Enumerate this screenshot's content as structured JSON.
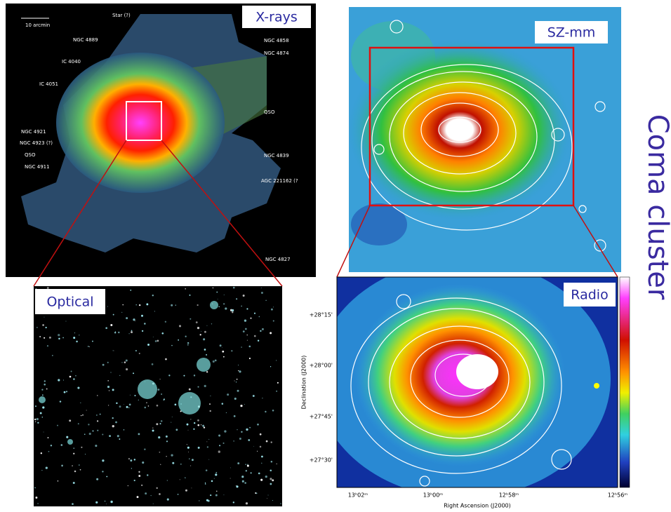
{
  "xray": {
    "label": "X-rays",
    "scale": "10 arcmin",
    "annotations": [
      "Star (?)",
      "NGC 4889",
      "NGC 4858",
      "NGC 4874",
      "IC 4040",
      "IC 4051",
      "QSO",
      "NGC 4921",
      "NGC 4923 (?)",
      "QSO",
      "NGC 4911",
      "NGC 4839",
      "AGC 221162 (?",
      "NGC 4827"
    ]
  },
  "sz": {
    "label": "SZ-mm"
  },
  "optical": {
    "label": "Optical"
  },
  "radio": {
    "label": "Radio",
    "y_axis_label": "Declination (J2000)",
    "x_axis_label": "Right Ascension (J2000)",
    "y_ticks": [
      "+28°15'",
      "+28°00'",
      "+27°45'",
      "+27°30'"
    ],
    "x_ticks": [
      "13ʰ02ᵐ",
      "13ʰ00ᵐ",
      "12ʰ58ᵐ",
      "12ʰ56ᵐ"
    ]
  },
  "title": "Coma cluster"
}
